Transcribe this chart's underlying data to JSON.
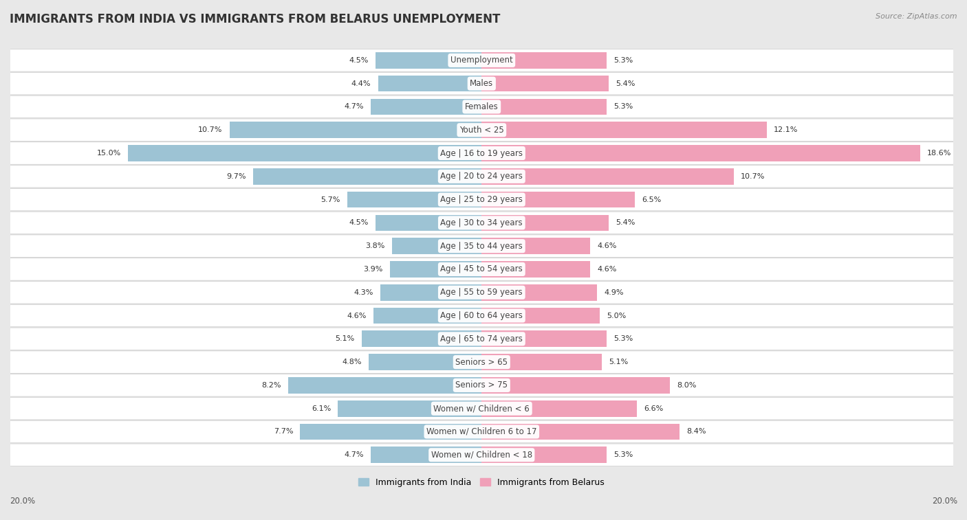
{
  "title": "IMMIGRANTS FROM INDIA VS IMMIGRANTS FROM BELARUS UNEMPLOYMENT",
  "source": "Source: ZipAtlas.com",
  "categories": [
    "Unemployment",
    "Males",
    "Females",
    "Youth < 25",
    "Age | 16 to 19 years",
    "Age | 20 to 24 years",
    "Age | 25 to 29 years",
    "Age | 30 to 34 years",
    "Age | 35 to 44 years",
    "Age | 45 to 54 years",
    "Age | 55 to 59 years",
    "Age | 60 to 64 years",
    "Age | 65 to 74 years",
    "Seniors > 65",
    "Seniors > 75",
    "Women w/ Children < 6",
    "Women w/ Children 6 to 17",
    "Women w/ Children < 18"
  ],
  "india_values": [
    4.5,
    4.4,
    4.7,
    10.7,
    15.0,
    9.7,
    5.7,
    4.5,
    3.8,
    3.9,
    4.3,
    4.6,
    5.1,
    4.8,
    8.2,
    6.1,
    7.7,
    4.7
  ],
  "belarus_values": [
    5.3,
    5.4,
    5.3,
    12.1,
    18.6,
    10.7,
    6.5,
    5.4,
    4.6,
    4.6,
    4.9,
    5.0,
    5.3,
    5.1,
    8.0,
    6.6,
    8.4,
    5.3
  ],
  "india_color": "#9dc3d4",
  "belarus_color": "#f0a0b8",
  "india_label": "Immigrants from India",
  "belarus_label": "Immigrants from Belarus",
  "axis_limit": 20.0,
  "background_color": "#e8e8e8",
  "bar_bg_color": "#ffffff",
  "row_bg_color": "#ffffff",
  "title_fontsize": 12,
  "label_fontsize": 8.5,
  "value_fontsize": 8,
  "source_fontsize": 8
}
